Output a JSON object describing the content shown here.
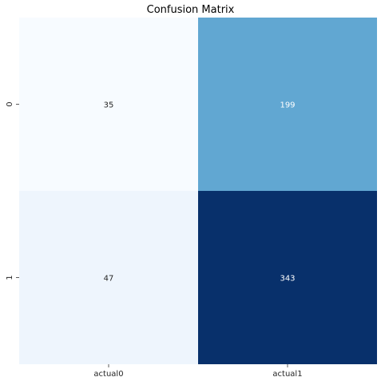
{
  "chart_data": {
    "type": "heatmap",
    "title": "Confusion Matrix",
    "xlabel": "",
    "ylabel": "",
    "x_ticklabels": [
      "actual0",
      "actual1"
    ],
    "y_ticklabels": [
      "0",
      "1"
    ],
    "matrix": [
      [
        35,
        199
      ],
      [
        47,
        343
      ]
    ],
    "colormap": "Blues",
    "colorbar": false,
    "cell_colors": [
      [
        "#f7fbff",
        "#61a7d2"
      ],
      [
        "#eef5fd",
        "#08306b"
      ]
    ],
    "annotation_colors": [
      [
        "#262626",
        "#ffffff"
      ],
      [
        "#262626",
        "#ffffff"
      ]
    ]
  }
}
